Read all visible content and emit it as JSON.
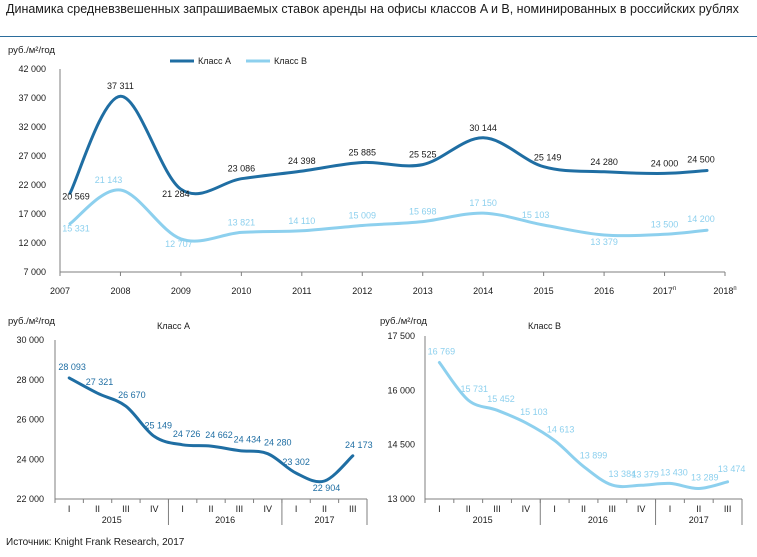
{
  "title": "Динамика средневзвешенных запрашиваемых ставок аренды на офисы классов A и B, номинированных в российских рублях",
  "source": "Источник: Knight Frank Research, 2017",
  "colors": {
    "class_a": "#1f6ea3",
    "class_b": "#8dd0ee",
    "axis": "#7f7f7f"
  },
  "chart_data": [
    {
      "type": "line",
      "unit_label": "руб./м²/год",
      "categories": [
        "2007",
        "2008",
        "2009",
        "2010",
        "2011",
        "2012",
        "2013",
        "2014",
        "2015",
        "2016",
        "2017п",
        "2018п"
      ],
      "yticks": [
        "7 000",
        "12 000",
        "17 000",
        "22 000",
        "27 000",
        "32 000",
        "37 000",
        "42 000"
      ],
      "ylim": [
        7000,
        42000
      ],
      "legend": [
        "Класс А",
        "Класс В"
      ],
      "series": [
        {
          "name": "Класс А",
          "color": "#1f6ea3",
          "values": [
            20569,
            37311,
            21284,
            23086,
            24398,
            25885,
            25525,
            30144,
            25149,
            24280,
            24000,
            24500
          ],
          "labels": [
            "20 569",
            "37 311",
            "21 284",
            "23 086",
            "24 398",
            "25 885",
            "25 525",
            "30 144",
            "25 149",
            "24 280",
            "24 000",
            "24 500"
          ]
        },
        {
          "name": "Класс В",
          "color": "#8dd0ee",
          "values": [
            15331,
            21143,
            12707,
            13821,
            14110,
            15009,
            15698,
            17150,
            15103,
            13379,
            13500,
            14200
          ],
          "labels": [
            "15 331",
            "21 143",
            "12 707",
            "13 821",
            "14 110",
            "15 009",
            "15 698",
            "17 150",
            "15 103",
            "13 379",
            "13 500",
            "14 200"
          ]
        }
      ]
    },
    {
      "type": "line",
      "title": "Класс А",
      "unit_label": "руб./м²/год",
      "quarters": [
        "I",
        "II",
        "III",
        "IV",
        "I",
        "II",
        "III",
        "IV",
        "I",
        "II",
        "III"
      ],
      "years": [
        "2015",
        "2016",
        "2017"
      ],
      "yticks": [
        "22 000",
        "24 000",
        "26 000",
        "28 000",
        "30 000"
      ],
      "ylim": [
        22000,
        30000
      ],
      "series": [
        {
          "name": "Класс А",
          "color": "#1f6ea3",
          "values": [
            28093,
            27321,
            26670,
            25149,
            24726,
            24662,
            24434,
            24280,
            23302,
            22904,
            24173
          ],
          "labels": [
            "28 093",
            "27 321",
            "26 670",
            "25 149",
            "24 726",
            "24 662",
            "24 434",
            "24 280",
            "23 302",
            "22 904",
            "24 173"
          ]
        }
      ]
    },
    {
      "type": "line",
      "title": "Класс В",
      "unit_label": "руб./м²/год",
      "quarters": [
        "I",
        "II",
        "III",
        "IV",
        "I",
        "II",
        "III",
        "IV",
        "I",
        "II",
        "III"
      ],
      "years": [
        "2015",
        "2016",
        "2017"
      ],
      "yticks": [
        "13 000",
        "14 500",
        "16 000",
        "17 500"
      ],
      "ylim": [
        13000,
        17500
      ],
      "series": [
        {
          "name": "Класс В",
          "color": "#8dd0ee",
          "values": [
            16769,
            15731,
            15452,
            15103,
            14613,
            13899,
            13384,
            13379,
            13430,
            13289,
            13474
          ],
          "labels": [
            "16 769",
            "15 731",
            "15 452",
            "15 103",
            "14 613",
            "13 899",
            "13 384",
            "13 379",
            "13 430",
            "13 289",
            "13 474"
          ]
        }
      ]
    }
  ]
}
